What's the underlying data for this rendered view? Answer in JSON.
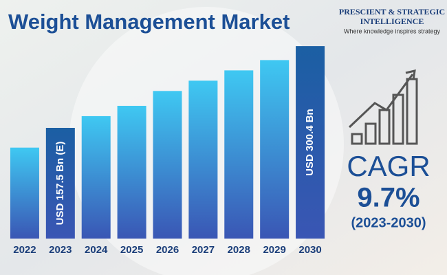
{
  "chart_data": {
    "type": "bar",
    "title": "Weight Management Market",
    "brand_line1": "PRESCIENT & STRATEGIC",
    "brand_line2": "INTELLIGENCE",
    "tagline": "Where knowledge inspires strategy",
    "cagr_label": "CAGR",
    "cagr_value": "9.7%",
    "cagr_period": "(2023-2030)",
    "categories": [
      "2022",
      "2023",
      "2024",
      "2025",
      "2026",
      "2027",
      "2028",
      "2029",
      "2030"
    ],
    "values": [
      123,
      157.5,
      178,
      196,
      222,
      240,
      258,
      276,
      300.4
    ],
    "value_labels": [
      null,
      "USD 157.5 Bn (E)",
      null,
      null,
      null,
      null,
      null,
      null,
      "USD 300.4 Bn"
    ],
    "colors": [
      "#3fc8f2",
      "#1b5fa3",
      "#3fc8f2",
      "#3fc8f2",
      "#3fc8f2",
      "#3fc8f2",
      "#3fc8f2",
      "#3fc8f2",
      "#1b5fa3"
    ],
    "gradient_bottom_color": "#3a56b4",
    "ylim": [
      -36,
      357
    ]
  }
}
